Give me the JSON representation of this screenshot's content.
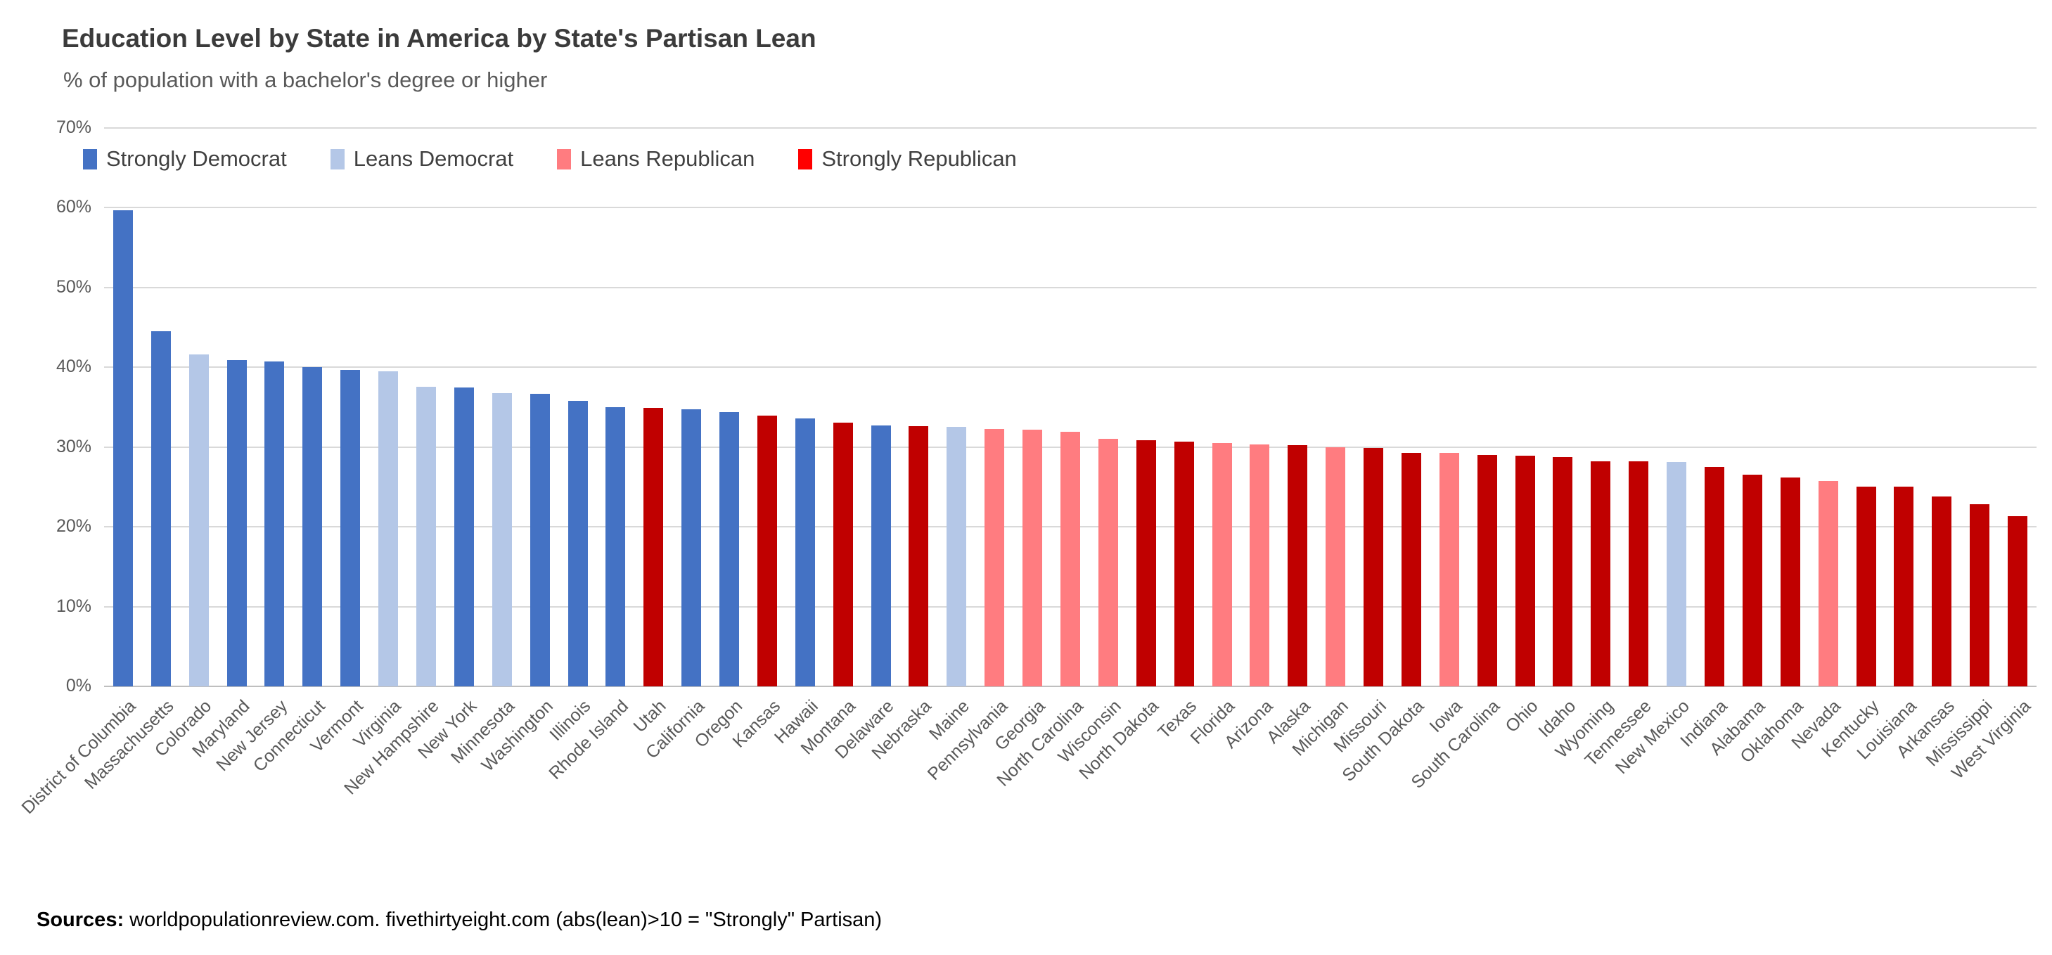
{
  "page": {
    "background": "#FFFFFF"
  },
  "header": {
    "title": "Education Level by State in America by State's Partisan Lean",
    "subtitle": "% of population with a bachelor's degree or higher"
  },
  "legend": {
    "position": "top-left-inside-plot",
    "items": [
      {
        "label": "Strongly Democrat",
        "key": "strongly_democrat",
        "color": "#4472C4"
      },
      {
        "label": "Leans Democrat",
        "key": "leans_democrat",
        "color": "#B4C7E7"
      },
      {
        "label": "Leans Republican",
        "key": "leans_republican",
        "color": "#FF7C80"
      },
      {
        "label": "Strongly Republican",
        "key": "strongly_republican",
        "color": "#FF0000"
      }
    ]
  },
  "footer": {
    "sources_label": "Sources:",
    "sources_text": " worldpopulationreview.com. fivethirtyeight.com (abs(lean)>10 = \"Strongly\" Partisan)"
  },
  "chart_data": {
    "type": "bar",
    "title": "Education Level by State in America by State's Partisan Lean",
    "subtitle": "% of population with a bachelor's degree or higher",
    "xlabel": "",
    "ylabel": "% of population with a bachelor's degree or higher",
    "ylim": [
      0,
      70
    ],
    "y_tick_step": 10,
    "y_tick_labels": [
      "0%",
      "10%",
      "20%",
      "30%",
      "40%",
      "50%",
      "60%",
      "70%"
    ],
    "grid": true,
    "legend_position": "top-left inside plot",
    "bar_colors": {
      "strongly_democrat": "#4472C4",
      "leans_democrat": "#B4C7E7",
      "leans_republican": "#FF7C80",
      "strongly_republican": "#C00000"
    },
    "categories": [
      "District of Columbia",
      "Massachusetts",
      "Colorado",
      "Maryland",
      "New Jersey",
      "Connecticut",
      "Vermont",
      "Virginia",
      "New Hampshire",
      "New York",
      "Minnesota",
      "Washington",
      "Illinois",
      "Rhode Island",
      "Utah",
      "California",
      "Oregon",
      "Kansas",
      "Hawaii",
      "Montana",
      "Delaware",
      "Nebraska",
      "Maine",
      "Pennsylvania",
      "Georgia",
      "North Carolina",
      "Wisconsin",
      "North Dakota",
      "Texas",
      "Florida",
      "Arizona",
      "Alaska",
      "Michigan",
      "Missouri",
      "South Dakota",
      "Iowa",
      "South Carolina",
      "Ohio",
      "Idaho",
      "Wyoming",
      "Tennessee",
      "New Mexico",
      "Indiana",
      "Alabama",
      "Oklahoma",
      "Nevada",
      "Kentucky",
      "Louisiana",
      "Arkansas",
      "Mississippi",
      "West Virginia"
    ],
    "values": [
      59.7,
      44.5,
      41.6,
      40.9,
      40.7,
      40.0,
      39.7,
      39.5,
      37.6,
      37.5,
      36.8,
      36.7,
      35.8,
      35.0,
      34.9,
      34.7,
      34.4,
      33.9,
      33.6,
      33.1,
      32.7,
      32.6,
      32.5,
      32.3,
      32.2,
      31.9,
      31.0,
      30.9,
      30.7,
      30.5,
      30.3,
      30.2,
      30.0,
      29.9,
      29.3,
      29.3,
      29.0,
      28.9,
      28.7,
      28.2,
      28.2,
      28.1,
      27.5,
      26.5,
      26.2,
      25.7,
      25.0,
      25.0,
      23.8,
      22.8,
      21.3
    ],
    "lean": [
      "strongly_democrat",
      "strongly_democrat",
      "leans_democrat",
      "strongly_democrat",
      "strongly_democrat",
      "strongly_democrat",
      "strongly_democrat",
      "leans_democrat",
      "leans_democrat",
      "strongly_democrat",
      "leans_democrat",
      "strongly_democrat",
      "strongly_democrat",
      "strongly_democrat",
      "strongly_republican",
      "strongly_democrat",
      "strongly_democrat",
      "strongly_republican",
      "strongly_democrat",
      "strongly_republican",
      "strongly_democrat",
      "strongly_republican",
      "leans_democrat",
      "leans_republican",
      "leans_republican",
      "leans_republican",
      "leans_republican",
      "strongly_republican",
      "strongly_republican",
      "leans_republican",
      "leans_republican",
      "strongly_republican",
      "leans_republican",
      "strongly_republican",
      "strongly_republican",
      "leans_republican",
      "strongly_republican",
      "strongly_republican",
      "strongly_republican",
      "strongly_republican",
      "strongly_republican",
      "leans_democrat",
      "strongly_republican",
      "strongly_republican",
      "strongly_republican",
      "leans_republican",
      "strongly_republican",
      "strongly_republican",
      "strongly_republican",
      "strongly_republican",
      "strongly_republican"
    ],
    "colors_visual": {
      "gridline": "#D9D9D9",
      "axis_line": "#BFBFBF",
      "title_text": "#3B3B3B",
      "muted_text": "#595959",
      "legend_text": "#404040"
    }
  }
}
